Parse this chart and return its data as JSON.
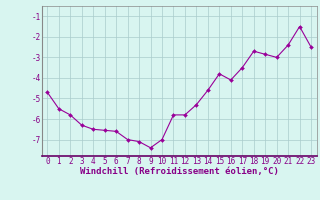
{
  "x": [
    0,
    1,
    2,
    3,
    4,
    5,
    6,
    7,
    8,
    9,
    10,
    11,
    12,
    13,
    14,
    15,
    16,
    17,
    18,
    19,
    20,
    21,
    22,
    23
  ],
  "y": [
    -4.7,
    -5.5,
    -5.8,
    -6.3,
    -6.5,
    -6.55,
    -6.6,
    -7.0,
    -7.1,
    -7.4,
    -7.0,
    -5.8,
    -5.8,
    -5.3,
    -4.6,
    -3.8,
    -4.1,
    -3.5,
    -2.7,
    -2.85,
    -3.0,
    -2.4,
    -1.5,
    -2.5
  ],
  "line_color": "#990099",
  "marker": "D",
  "markersize": 2.0,
  "linewidth": 0.8,
  "bg_color": "#d8f5f0",
  "grid_color": "#aacccc",
  "xlabel": "Windchill (Refroidissement éolien,°C)",
  "xlabel_fontsize": 6.5,
  "yticks": [
    -7,
    -6,
    -5,
    -4,
    -3,
    -2,
    -1
  ],
  "xticks": [
    0,
    1,
    2,
    3,
    4,
    5,
    6,
    7,
    8,
    9,
    10,
    11,
    12,
    13,
    14,
    15,
    16,
    17,
    18,
    19,
    20,
    21,
    22,
    23
  ],
  "xlim": [
    -0.5,
    23.5
  ],
  "ylim": [
    -7.8,
    -0.5
  ],
  "tick_fontsize": 5.5,
  "tick_color": "#880088",
  "spine_color": "#888888",
  "bottom_spine_color": "#660066"
}
